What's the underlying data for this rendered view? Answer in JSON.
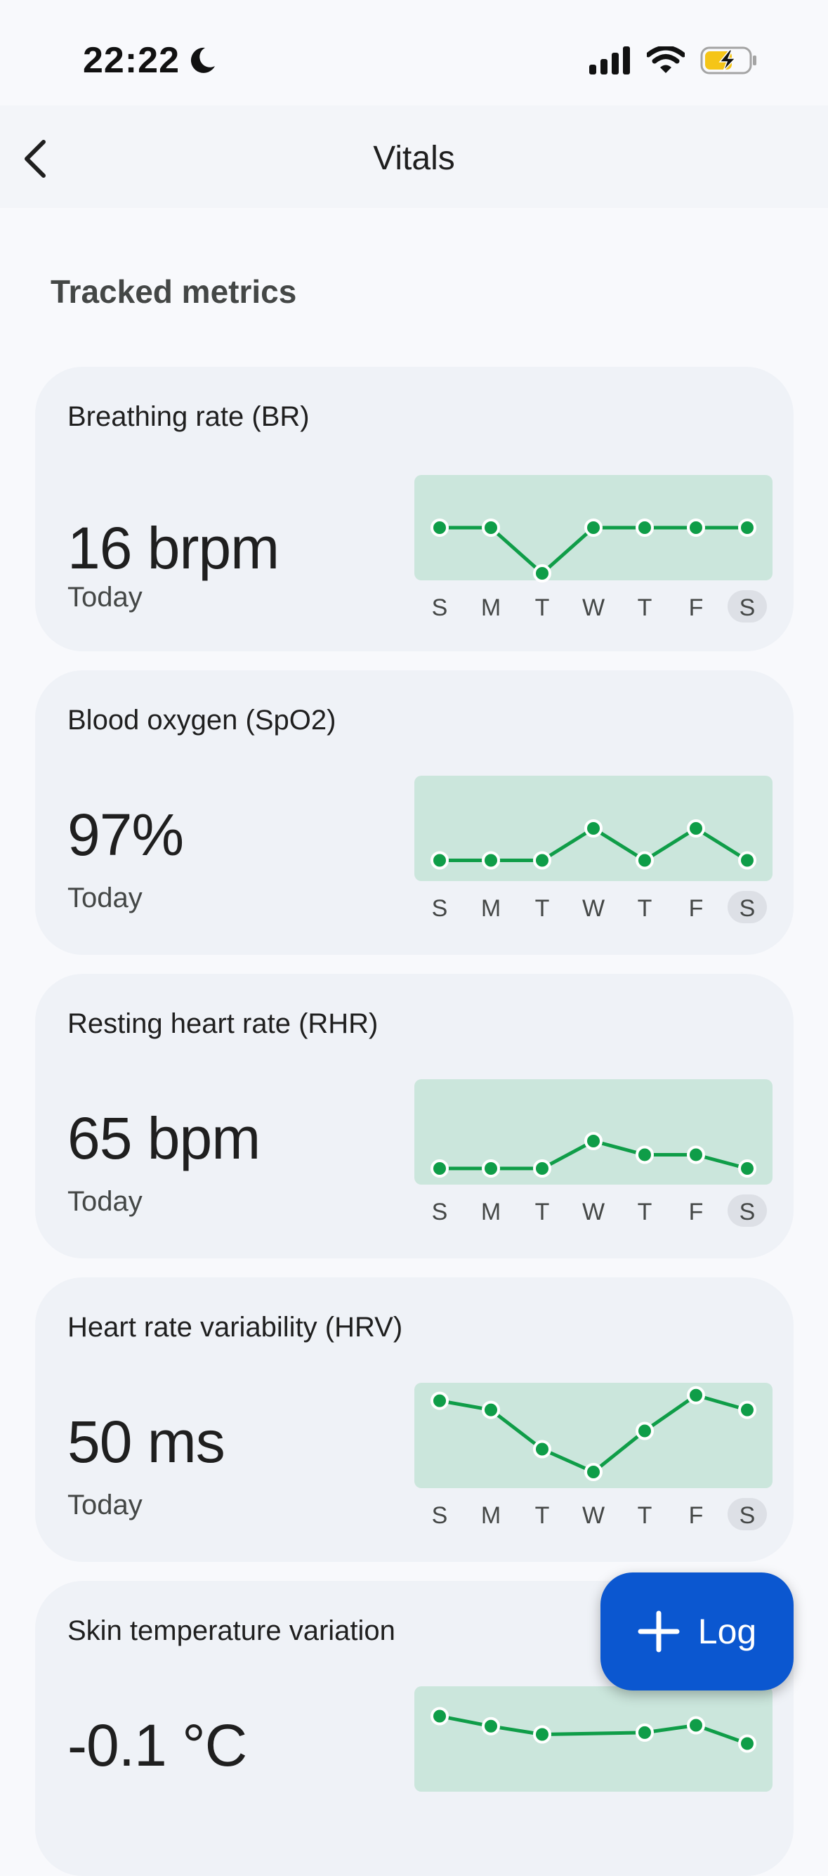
{
  "status_bar": {
    "time": "22:22"
  },
  "app_bar": {
    "title": "Vitals"
  },
  "section_title": "Tracked metrics",
  "days": [
    "S",
    "M",
    "T",
    "W",
    "T",
    "F",
    "S"
  ],
  "accent_color": "#0f9d48",
  "fill_color": "#cbe6dc",
  "metrics": [
    {
      "title": "Breathing rate (BR)",
      "value": "16 brpm",
      "sub": "Today",
      "trend": [
        0.5,
        0.5,
        1.0,
        0.5,
        0.5,
        0.5,
        0.5
      ]
    },
    {
      "title": "Blood oxygen (SpO2)",
      "value": "97%",
      "sub": "Today",
      "trend": [
        0.85,
        0.85,
        0.85,
        0.5,
        0.85,
        0.5,
        0.85
      ]
    },
    {
      "title": "Resting heart rate (RHR)",
      "value": "65 bpm",
      "sub": "Today",
      "trend": [
        0.9,
        0.9,
        0.9,
        0.6,
        0.75,
        0.75,
        0.9
      ]
    },
    {
      "title": "Heart rate variability (HRV)",
      "value": "50 ms",
      "sub": "Today",
      "trend": [
        0.12,
        0.22,
        0.65,
        0.9,
        0.45,
        0.06,
        0.22
      ]
    },
    {
      "title": "Skin temperature variation",
      "value": "-0.1 °C",
      "sub": "",
      "trend": [
        0.25,
        0.36,
        0.45,
        null,
        0.43,
        0.35,
        0.55
      ]
    }
  ],
  "fab": {
    "label": "Log"
  }
}
